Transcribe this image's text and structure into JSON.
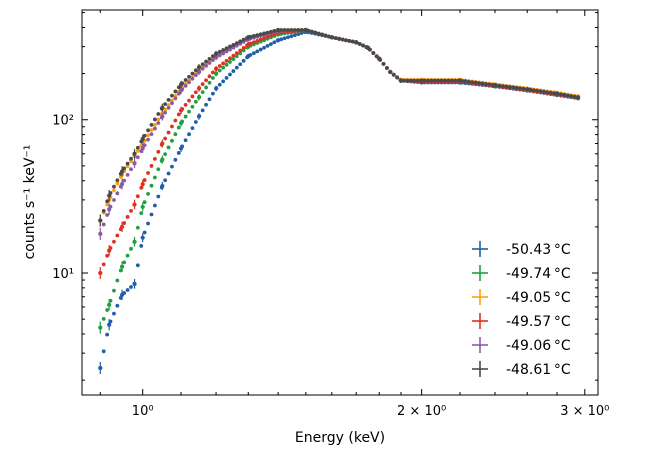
{
  "chart_data": {
    "type": "scatter",
    "title": "",
    "xlabel": "Energy (keV)",
    "ylabel": "counts s⁻¹ keV⁻¹",
    "xscale": "log",
    "yscale": "log",
    "xlim": [
      0.86,
      3.1
    ],
    "ylim": [
      1.6,
      520
    ],
    "x_ticks": [
      {
        "value": 1.0,
        "label": "10⁰"
      },
      {
        "value": 2.0,
        "label": "2 × 10⁰"
      },
      {
        "value": 3.0,
        "label": "3 × 10⁰"
      }
    ],
    "y_ticks": [
      {
        "value": 10,
        "label": "10¹"
      },
      {
        "value": 100,
        "label": "10²"
      }
    ],
    "legend_position": "lower-right",
    "errorbars": true,
    "x": [
      0.9,
      0.92,
      0.95,
      0.98,
      1.0,
      1.05,
      1.1,
      1.15,
      1.2,
      1.3,
      1.4,
      1.5,
      1.6,
      1.7,
      1.75,
      1.8,
      1.85,
      1.9,
      2.0,
      2.2,
      2.4,
      2.6,
      2.8,
      2.95
    ],
    "series": [
      {
        "name": "-50.43 °C",
        "color": "#1f5fa8",
        "values": [
          2.4,
          4.6,
          7.2,
          8.5,
          17,
          37,
          65,
          105,
          160,
          260,
          330,
          375,
          345,
          320,
          295,
          250,
          205,
          180,
          175,
          175,
          165,
          155,
          145,
          138
        ]
      },
      {
        "name": "-49.74 °C",
        "color": "#1fa045",
        "values": [
          4.4,
          6.2,
          11,
          16,
          27,
          55,
          95,
          140,
          200,
          300,
          360,
          385,
          345,
          320,
          295,
          250,
          205,
          180,
          180,
          180,
          168,
          158,
          148,
          140
        ]
      },
      {
        "name": "-49.05 °C",
        "color": "#ff9f0e",
        "values": [
          22,
          30,
          44,
          58,
          70,
          110,
          160,
          210,
          260,
          340,
          385,
          385,
          345,
          320,
          295,
          250,
          205,
          182,
          182,
          182,
          170,
          160,
          150,
          142
        ]
      },
      {
        "name": "-49.57 °C",
        "color": "#e0301e",
        "values": [
          10,
          14,
          20,
          28,
          38,
          70,
          115,
          160,
          215,
          310,
          370,
          385,
          345,
          320,
          295,
          250,
          205,
          180,
          178,
          178,
          166,
          156,
          146,
          139
        ]
      },
      {
        "name": "-49.06 °C",
        "color": "#8a5aa6",
        "values": [
          18,
          26,
          38,
          52,
          65,
          105,
          155,
          205,
          255,
          335,
          380,
          385,
          345,
          320,
          295,
          250,
          205,
          180,
          180,
          180,
          168,
          158,
          148,
          140
        ]
      },
      {
        "name": "-48.61 °C",
        "color": "#4a4a4a",
        "values": [
          22,
          32,
          46,
          60,
          75,
          120,
          170,
          220,
          270,
          345,
          385,
          385,
          345,
          320,
          295,
          250,
          205,
          180,
          180,
          180,
          168,
          158,
          148,
          140
        ]
      }
    ]
  }
}
